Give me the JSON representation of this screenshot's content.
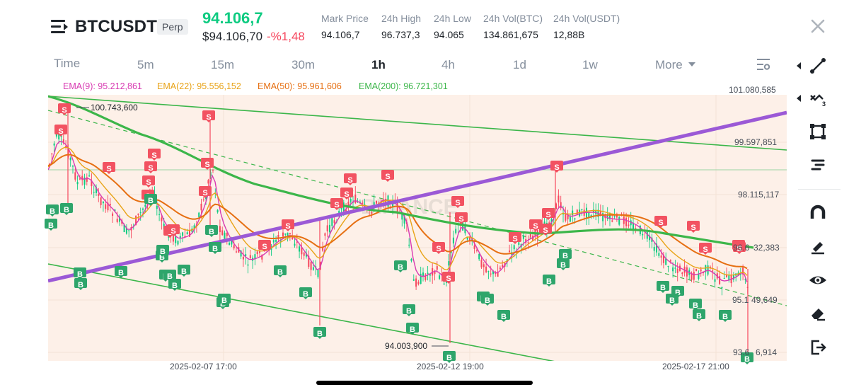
{
  "header": {
    "symbol": "BTCUSDT",
    "contract_type": "Perp",
    "last_price": "94.106,7",
    "fiat_price": "$94.106,70",
    "change": "-%1,48",
    "stats": [
      {
        "label": "Mark Price",
        "value": "94.106,7"
      },
      {
        "label": "24h High",
        "value": "96.737,3"
      },
      {
        "label": "24h Low",
        "value": "94.065"
      },
      {
        "label": "24h Vol(BTC)",
        "value": "134.861,675"
      },
      {
        "label": "24h Vol(USDT)",
        "value": "12,88B"
      }
    ]
  },
  "timeframes": {
    "items": [
      "Time",
      "5m",
      "15m",
      "30m",
      "1h",
      "4h",
      "1d",
      "1w"
    ],
    "active": "1h",
    "more_label": "More"
  },
  "indicators": [
    {
      "label": "EMA(9): 95.212,861",
      "color": "#d83ab2"
    },
    {
      "label": "EMA(22): 95.556,152",
      "color": "#e8a317"
    },
    {
      "label": "EMA(50): 95.961,606",
      "color": "#e66f12"
    },
    {
      "label": "EMA(200): 96.721,301",
      "color": "#3cb64a"
    }
  ],
  "price_axis": [
    "101.080,585",
    "99.597,851",
    "98.115,117",
    "32,383",
    "49,649",
    "6,914"
  ],
  "price_axis_prefix": [
    "",
    "",
    "",
    "96.6",
    "95.1",
    "93.6"
  ],
  "marks": {
    "high": "100.743,600",
    "low": "94.003,900",
    "buy_label": "B",
    "sell_label": "S"
  },
  "time_axis": [
    "2025-02-07 17:00",
    "2025-02-12 19:00",
    "2025-02-17 21:00"
  ],
  "watermark": "BINANCE",
  "colors": {
    "up": "#0ecb81",
    "down": "#f6465d",
    "sell_marker": "#f25261",
    "buy_marker": "#2ea56b",
    "trendline": "#9b59d6",
    "channel": "#3cb64a"
  },
  "toolbar": [
    "line-tool-icon",
    "fib-tool-icon",
    "shape-tool-icon",
    "text-tool-icon",
    "magnet-icon",
    "pencil-icon",
    "eye-icon",
    "eraser-icon",
    "exit-icon"
  ]
}
